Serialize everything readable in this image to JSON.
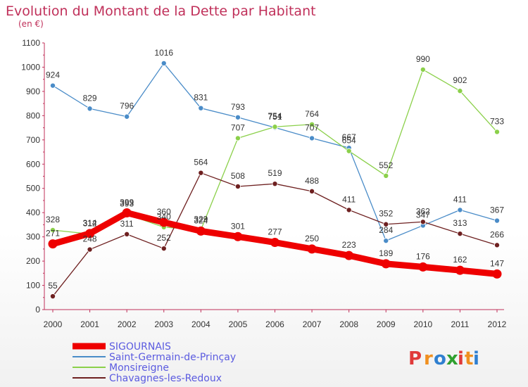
{
  "chart_data": {
    "type": "line",
    "title": "Evolution du Montant de la Dette par Habitant",
    "subtitle": "(en €)",
    "x": [
      "2000",
      "2001",
      "2002",
      "2003",
      "2004",
      "2005",
      "2006",
      "2007",
      "2008",
      "2009",
      "2010",
      "2011",
      "2012"
    ],
    "ylim": [
      0,
      1100
    ],
    "yticks": [
      0,
      100,
      200,
      300,
      400,
      500,
      600,
      700,
      800,
      900,
      1000,
      1100
    ],
    "grid": false,
    "legend_position": "bottom-left",
    "series": [
      {
        "name": "Saint-Germain-de-Prinçay",
        "color": "#4a8cc8",
        "values": [
          924,
          829,
          796,
          1016,
          831,
          793,
          751,
          707,
          667,
          284,
          347,
          411,
          367
        ]
      },
      {
        "name": "Monsireigne",
        "color": "#8bd04a",
        "values": [
          328,
          312,
          393,
          340,
          329,
          707,
          754,
          764,
          654,
          552,
          990,
          902,
          733
        ]
      },
      {
        "name": "Chavagnes-les-Redoux",
        "color": "#6e2020",
        "values": [
          55,
          248,
          311,
          252,
          564,
          508,
          519,
          488,
          411,
          352,
          362,
          313,
          266
        ]
      },
      {
        "name": "SIGOURNAIS",
        "color": "#ee0000",
        "values": [
          271,
          314,
          399,
          360,
          324,
          301,
          277,
          250,
          223,
          189,
          176,
          162,
          147
        ]
      }
    ]
  },
  "colors": {
    "title": "#c0305a",
    "axis": "#c0305a",
    "legend_text": "#5b5be0"
  },
  "brand": {
    "name": "Proxiti",
    "letters": [
      "P",
      "r",
      "o",
      "x",
      "i",
      "t",
      "i"
    ],
    "colors": [
      "#e03a3a",
      "#f09020",
      "#2f7fd0",
      "#30a030",
      "#e03a3a",
      "#f09020",
      "#2f7fd0"
    ]
  }
}
